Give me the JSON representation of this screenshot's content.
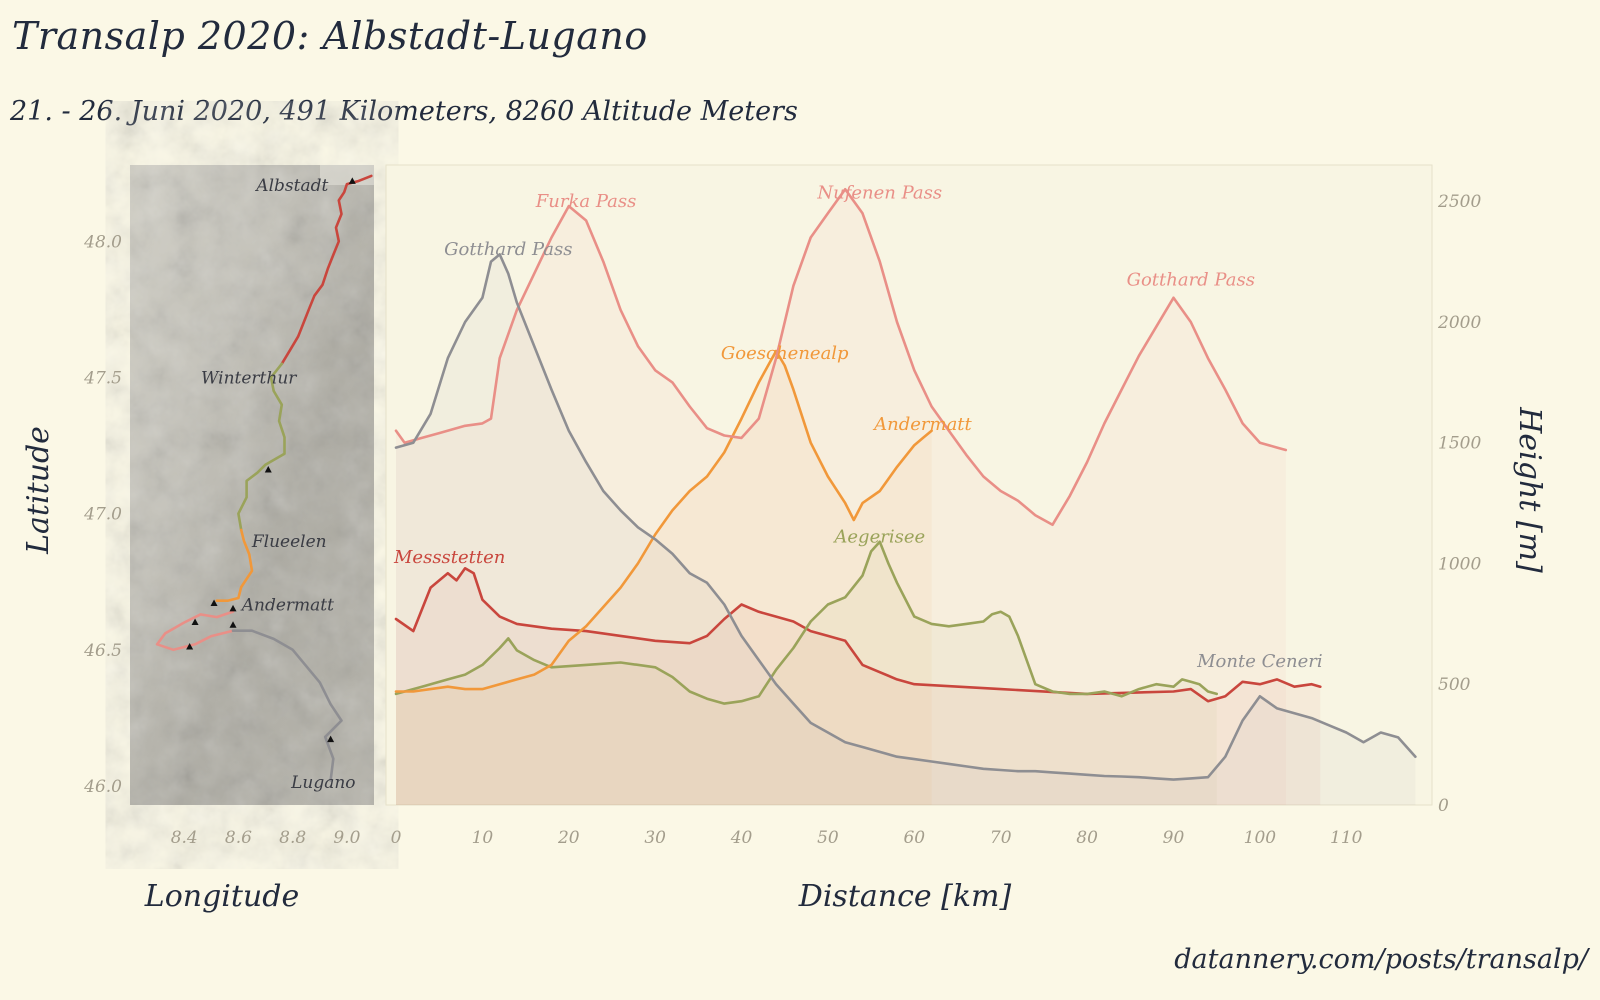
{
  "title": "Transalp 2020: Albstadt-Lugano",
  "subtitle": "21. - 26. Juni 2020, 491 Kilometers, 8260 Altitude Meters",
  "credit": "datannery.com/posts/transalp/",
  "colors": {
    "background": "#fbf8e6",
    "text": "#2b3346",
    "axis_text": "#a39d8c",
    "day1": "#c9463d",
    "day2": "#9aa35a",
    "day3": "#f1983a",
    "day4": "#e98f87",
    "day5": "#8e8e92"
  },
  "chart_data": [
    {
      "type": "map",
      "xlabel": "Longitude",
      "ylabel": "Latitude",
      "xlim": [
        8.2,
        9.1
      ],
      "ylim": [
        45.93,
        48.28
      ],
      "xticks": [
        "8.4",
        "8.6",
        "8.8",
        "9.0"
      ],
      "xtick_values": [
        8.4,
        8.6,
        8.8,
        9.0
      ],
      "yticks": [
        "46.0",
        "46.5",
        "47.0",
        "47.5",
        "48.0"
      ],
      "ytick_values": [
        46.0,
        46.5,
        47.0,
        47.5,
        48.0
      ],
      "places": [
        {
          "name": "Albstadt",
          "lon": 9.02,
          "lat": 48.2
        },
        {
          "name": "Winterthur",
          "lon": 8.72,
          "lat": 47.5
        },
        {
          "name": "Flueelen",
          "lon": 8.62,
          "lat": 46.9
        },
        {
          "name": "Andermatt",
          "lon": 8.59,
          "lat": 46.63
        },
        {
          "name": "Lugano",
          "lon": 8.95,
          "lat": 46.0
        }
      ],
      "markers": [
        {
          "lon": 9.02,
          "lat": 48.22
        },
        {
          "lon": 8.71,
          "lat": 47.16
        },
        {
          "lon": 8.51,
          "lat": 46.67
        },
        {
          "lon": 8.58,
          "lat": 46.65
        },
        {
          "lon": 8.58,
          "lat": 46.59
        },
        {
          "lon": 8.44,
          "lat": 46.6
        },
        {
          "lon": 8.42,
          "lat": 46.51
        },
        {
          "lon": 8.94,
          "lat": 46.17
        }
      ],
      "routes": [
        {
          "day": 1,
          "points": [
            [
              9.09,
              48.24
            ],
            [
              9.04,
              48.22
            ],
            [
              9.0,
              48.21
            ],
            [
              8.99,
              48.18
            ],
            [
              8.97,
              48.15
            ],
            [
              8.98,
              48.1
            ],
            [
              8.96,
              48.05
            ],
            [
              8.97,
              48.0
            ],
            [
              8.95,
              47.95
            ],
            [
              8.93,
              47.9
            ],
            [
              8.91,
              47.84
            ],
            [
              8.88,
              47.8
            ],
            [
              8.86,
              47.75
            ],
            [
              8.84,
              47.7
            ],
            [
              8.82,
              47.65
            ],
            [
              8.79,
              47.6
            ],
            [
              8.76,
              47.55
            ]
          ]
        },
        {
          "day": 2,
          "points": [
            [
              8.76,
              47.55
            ],
            [
              8.72,
              47.5
            ],
            [
              8.73,
              47.45
            ],
            [
              8.76,
              47.4
            ],
            [
              8.75,
              47.34
            ],
            [
              8.77,
              47.28
            ],
            [
              8.77,
              47.22
            ],
            [
              8.7,
              47.18
            ],
            [
              8.67,
              47.15
            ],
            [
              8.63,
              47.12
            ],
            [
              8.63,
              47.06
            ],
            [
              8.6,
              47.0
            ],
            [
              8.61,
              46.94
            ]
          ]
        },
        {
          "day": 3,
          "points": [
            [
              8.61,
              46.94
            ],
            [
              8.62,
              46.9
            ],
            [
              8.64,
              46.85
            ],
            [
              8.65,
              46.79
            ],
            [
              8.61,
              46.73
            ],
            [
              8.6,
              46.69
            ],
            [
              8.56,
              46.68
            ],
            [
              8.52,
              46.68
            ]
          ]
        },
        {
          "day": 4,
          "points": [
            [
              8.58,
              46.64
            ],
            [
              8.52,
              46.62
            ],
            [
              8.46,
              46.63
            ],
            [
              8.4,
              46.6
            ],
            [
              8.33,
              46.56
            ],
            [
              8.3,
              46.52
            ],
            [
              8.36,
              46.5
            ],
            [
              8.44,
              46.52
            ],
            [
              8.5,
              46.55
            ],
            [
              8.58,
              46.57
            ]
          ]
        },
        {
          "day": 5,
          "points": [
            [
              8.58,
              46.57
            ],
            [
              8.65,
              46.57
            ],
            [
              8.73,
              46.54
            ],
            [
              8.8,
              46.5
            ],
            [
              8.85,
              46.44
            ],
            [
              8.9,
              46.38
            ],
            [
              8.94,
              46.3
            ],
            [
              8.98,
              46.24
            ],
            [
              8.92,
              46.18
            ],
            [
              8.95,
              46.1
            ],
            [
              8.94,
              46.02
            ]
          ]
        }
      ]
    },
    {
      "type": "line",
      "xlabel": "Distance [km]",
      "ylabel": "Height [m]",
      "xlim": [
        0,
        119
      ],
      "ylim": [
        0,
        2650
      ],
      "xticks": [
        "0",
        "10",
        "20",
        "30",
        "40",
        "50",
        "60",
        "70",
        "80",
        "90",
        "100",
        "110"
      ],
      "xtick_values": [
        0,
        10,
        20,
        30,
        40,
        50,
        60,
        70,
        80,
        90,
        100,
        110
      ],
      "yticks": [
        "0",
        "500",
        "1000",
        "1500",
        "2000",
        "2500"
      ],
      "ytick_values": [
        0,
        500,
        1000,
        1500,
        2000,
        2500
      ],
      "series": [
        {
          "day": 1,
          "x": [
            0,
            2,
            4,
            6,
            7,
            8,
            9,
            10,
            12,
            14,
            18,
            22,
            26,
            30,
            34,
            36,
            38,
            40,
            42,
            44,
            46,
            48,
            50,
            52,
            54,
            56,
            58,
            60,
            70,
            80,
            90,
            92,
            94,
            96,
            98,
            100,
            102,
            104,
            106,
            107
          ],
          "y": [
            770,
            720,
            900,
            960,
            930,
            980,
            960,
            850,
            780,
            750,
            730,
            720,
            700,
            680,
            670,
            700,
            770,
            830,
            800,
            780,
            760,
            720,
            700,
            680,
            580,
            550,
            520,
            500,
            480,
            460,
            470,
            480,
            430,
            450,
            510,
            500,
            520,
            490,
            500,
            490
          ],
          "annotations": [
            {
              "text": "Messstetten",
              "x": 0,
              "y": 1035
            }
          ]
        },
        {
          "day": 2,
          "x": [
            0,
            3,
            6,
            8,
            10,
            12,
            13,
            14,
            16,
            18,
            22,
            26,
            30,
            32,
            34,
            36,
            38,
            40,
            42,
            44,
            46,
            48,
            50,
            52,
            54,
            55,
            56,
            57,
            58,
            60,
            62,
            64,
            66,
            68,
            69,
            70,
            71,
            72,
            74,
            76,
            78,
            80,
            82,
            84,
            86,
            88,
            90,
            91,
            92,
            93,
            94,
            95
          ],
          "y": [
            460,
            490,
            520,
            540,
            580,
            650,
            690,
            640,
            600,
            570,
            580,
            590,
            570,
            530,
            470,
            440,
            420,
            430,
            450,
            560,
            650,
            760,
            830,
            860,
            950,
            1050,
            1090,
            1000,
            920,
            780,
            750,
            740,
            750,
            760,
            790,
            800,
            780,
            700,
            500,
            470,
            460,
            460,
            470,
            450,
            480,
            500,
            490,
            520,
            510,
            500,
            470,
            460
          ],
          "annotations": [
            {
              "text": "Aegerisee",
              "x": 56,
              "y": 1120
            }
          ]
        },
        {
          "day": 3,
          "x": [
            0,
            2,
            4,
            6,
            8,
            10,
            12,
            14,
            16,
            18,
            20,
            22,
            24,
            26,
            28,
            30,
            32,
            34,
            36,
            38,
            40,
            42,
            44,
            45,
            46,
            48,
            50,
            52,
            53,
            54,
            56,
            58,
            60,
            61,
            62
          ],
          "y": [
            470,
            470,
            480,
            490,
            480,
            480,
            500,
            520,
            540,
            580,
            680,
            740,
            820,
            900,
            1000,
            1120,
            1220,
            1300,
            1360,
            1460,
            1600,
            1750,
            1880,
            1820,
            1720,
            1500,
            1360,
            1250,
            1180,
            1250,
            1300,
            1400,
            1490,
            1520,
            1550
          ],
          "annotations": [
            {
              "text": "Goeschenealp",
              "x": 45,
              "y": 1880
            },
            {
              "text": "Andermatt",
              "x": 61,
              "y": 1585
            }
          ]
        },
        {
          "day": 4,
          "x": [
            0,
            1,
            3,
            5,
            8,
            10,
            11,
            12,
            14,
            16,
            18,
            20,
            22,
            24,
            26,
            28,
            30,
            32,
            34,
            36,
            38,
            40,
            42,
            44,
            46,
            48,
            50,
            52,
            54,
            56,
            58,
            60,
            62,
            64,
            66,
            68,
            70,
            72,
            74,
            76,
            78,
            80,
            82,
            84,
            86,
            88,
            90,
            92,
            94,
            96,
            98,
            100,
            102,
            103
          ],
          "y": [
            1550,
            1500,
            1520,
            1540,
            1570,
            1580,
            1600,
            1850,
            2050,
            2200,
            2350,
            2480,
            2420,
            2250,
            2050,
            1900,
            1800,
            1750,
            1650,
            1560,
            1530,
            1520,
            1600,
            1850,
            2150,
            2350,
            2450,
            2550,
            2450,
            2250,
            2000,
            1800,
            1650,
            1550,
            1450,
            1360,
            1300,
            1260,
            1200,
            1160,
            1280,
            1420,
            1580,
            1720,
            1860,
            1980,
            2100,
            2000,
            1850,
            1720,
            1580,
            1500,
            1480,
            1470
          ],
          "annotations": [
            {
              "text": "Furka Pass",
              "x": 22,
              "y": 2510
            },
            {
              "text": "Nufenen Pass",
              "x": 56,
              "y": 2545
            },
            {
              "text": "Gotthard Pass",
              "x": 92,
              "y": 2185
            }
          ]
        },
        {
          "day": 5,
          "x": [
            0,
            2,
            4,
            6,
            8,
            10,
            11,
            12,
            13,
            14,
            16,
            18,
            20,
            22,
            24,
            26,
            28,
            30,
            32,
            34,
            36,
            38,
            40,
            42,
            44,
            46,
            48,
            50,
            52,
            54,
            56,
            58,
            60,
            62,
            64,
            66,
            68,
            70,
            72,
            74,
            76,
            78,
            80,
            82,
            84,
            86,
            88,
            90,
            92,
            94,
            96,
            98,
            100,
            102,
            104,
            106,
            108,
            110,
            112,
            114,
            116,
            118
          ],
          "y": [
            1480,
            1500,
            1620,
            1850,
            2000,
            2100,
            2250,
            2280,
            2200,
            2080,
            1900,
            1720,
            1550,
            1420,
            1300,
            1220,
            1150,
            1100,
            1040,
            960,
            920,
            830,
            700,
            600,
            500,
            420,
            340,
            300,
            260,
            240,
            220,
            200,
            190,
            180,
            170,
            160,
            150,
            145,
            140,
            140,
            135,
            130,
            125,
            120,
            118,
            115,
            110,
            105,
            110,
            115,
            200,
            350,
            450,
            400,
            380,
            360,
            330,
            300,
            260,
            300,
            280,
            200
          ],
          "annotations": [
            {
              "text": "Gotthard Pass",
              "x": 13,
              "y": 2310
            },
            {
              "text": "Monte Ceneri",
              "x": 100,
              "y": 605
            }
          ]
        }
      ]
    }
  ]
}
